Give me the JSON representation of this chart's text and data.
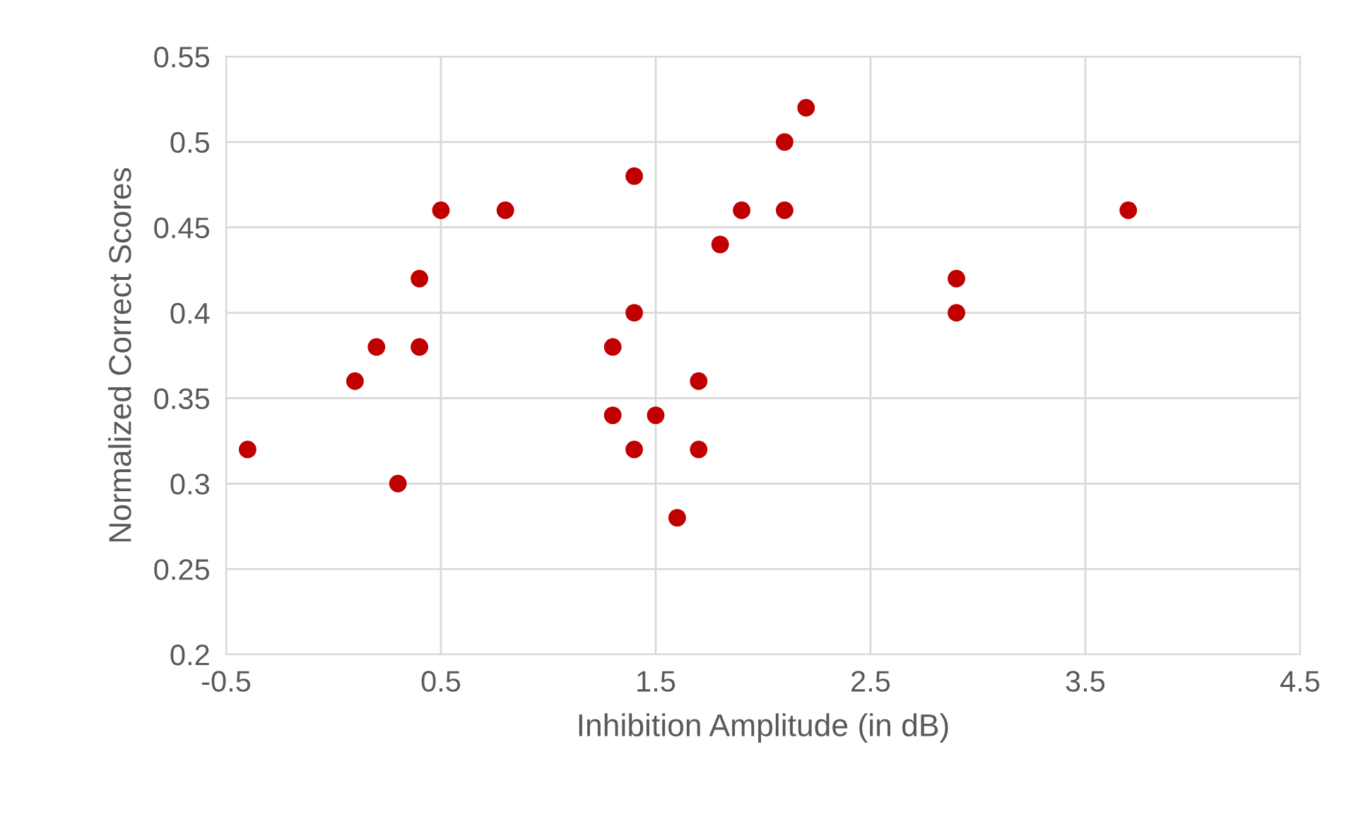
{
  "chart_data": {
    "type": "scatter",
    "xlabel": "Inhibition Amplitude (in dB)",
    "ylabel": "Normalized Correct Scores",
    "series": [
      {
        "color": "#c00000",
        "x": [
          -0.4,
          0.1,
          0.2,
          0.3,
          0.4,
          0.4,
          0.5,
          0.8,
          1.3,
          1.3,
          1.4,
          1.4,
          1.4,
          1.5,
          1.6,
          1.7,
          1.7,
          1.8,
          1.9,
          2.1,
          2.1,
          2.2,
          2.9,
          2.9,
          3.7
        ],
        "values": [
          0.32,
          0.36,
          0.38,
          0.3,
          0.42,
          0.38,
          0.46,
          0.46,
          0.38,
          0.34,
          0.48,
          0.4,
          0.32,
          0.34,
          0.28,
          0.36,
          0.32,
          0.44,
          0.46,
          0.5,
          0.46,
          0.52,
          0.42,
          0.4,
          0.46
        ]
      }
    ],
    "xlim": [
      -0.5,
      4.5
    ],
    "xticks": [
      -0.5,
      0.5,
      1.5,
      2.5,
      3.5,
      4.5
    ],
    "ylim": [
      0.2,
      0.55
    ],
    "yticks": [
      0.2,
      0.25,
      0.3,
      0.35,
      0.4,
      0.45,
      0.5,
      0.55
    ],
    "grid": true,
    "marker": "circle"
  }
}
